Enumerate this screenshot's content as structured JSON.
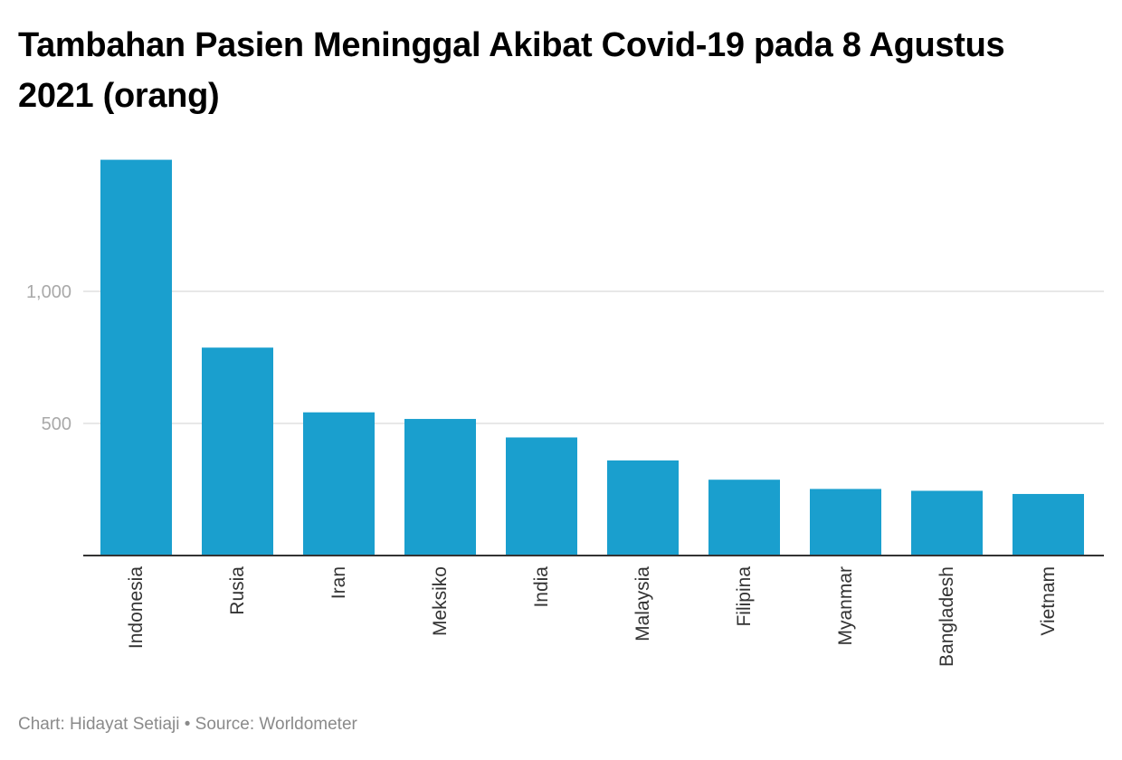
{
  "chart_data": {
    "type": "bar",
    "title": "Tambahan Pasien Meninggal Akibat Covid-19 pada 8 Agustus 2021 (orang)",
    "xlabel": "",
    "ylabel": "",
    "categories": [
      "Indonesia",
      "Rusia",
      "Iran",
      "Meksiko",
      "India",
      "Malaysia",
      "Filipina",
      "Myanmar",
      "Bangladesh",
      "Vietnam"
    ],
    "values": [
      1498,
      787,
      542,
      517,
      447,
      360,
      287,
      252,
      245,
      233
    ],
    "ylim": [
      0,
      1500
    ],
    "yticks": [
      500,
      1000
    ],
    "ytick_labels": [
      "500",
      "1,000"
    ],
    "grid": true,
    "bar_color": "#1a9fce",
    "gridline_color": "#e0e0e0",
    "baseline_color": "#333333"
  },
  "footer": {
    "credit": "Chart: Hidayat Setiaji • Source: Worldometer"
  }
}
